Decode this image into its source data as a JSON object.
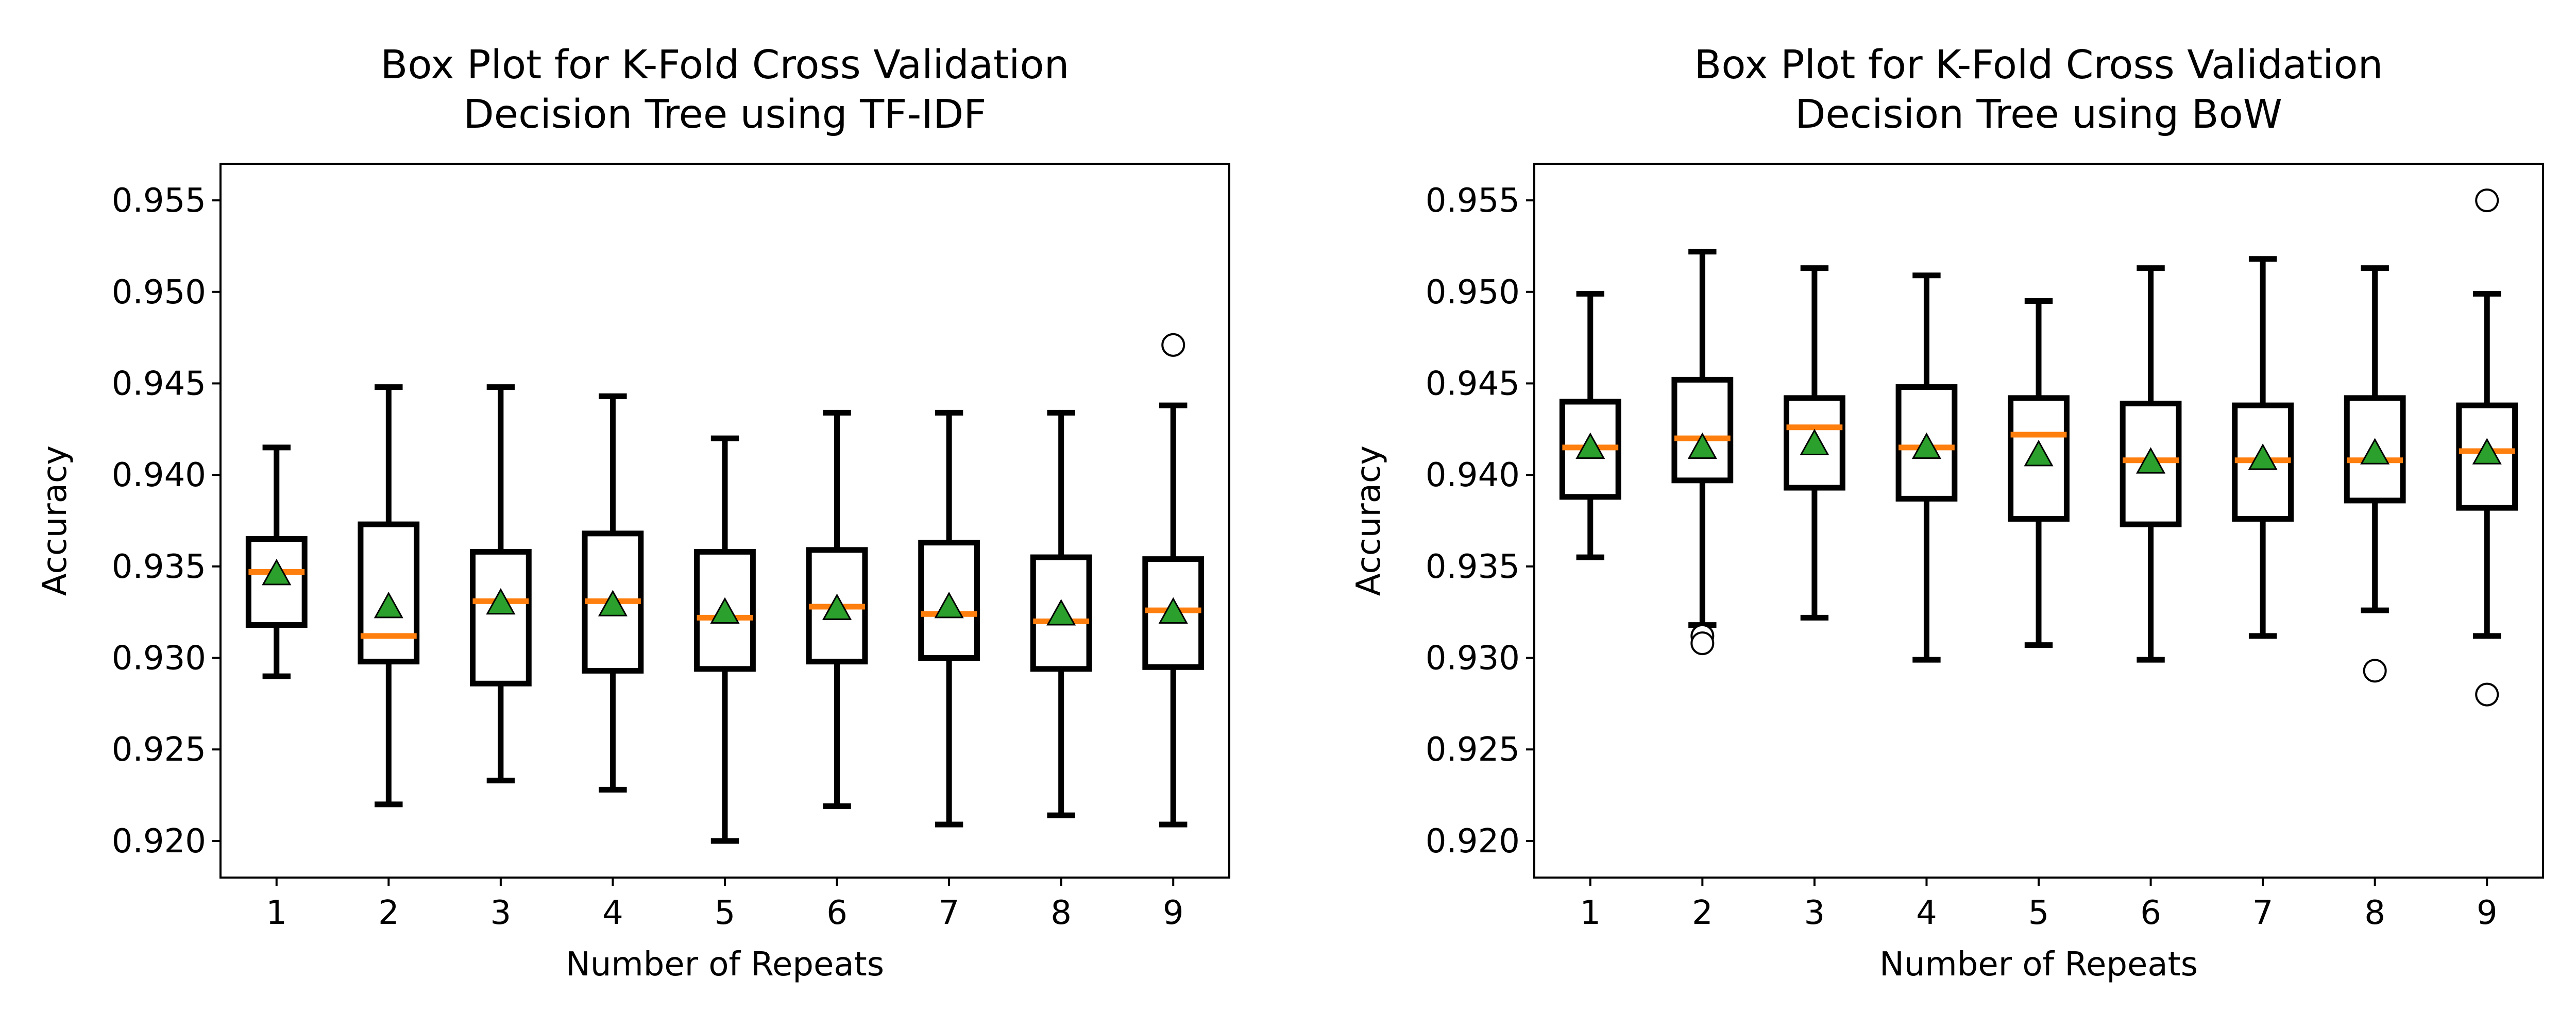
{
  "chart_data": [
    {
      "type": "box",
      "title": "Box Plot for K-Fold Cross Validation\nDecision Tree using TF-IDF",
      "title_lines": [
        "Box Plot for K-Fold Cross Validation",
        "Decision Tree using TF-IDF"
      ],
      "xlabel": "Number of Repeats",
      "ylabel": "Accuracy",
      "categories": [
        "1",
        "2",
        "3",
        "4",
        "5",
        "6",
        "7",
        "8",
        "9"
      ],
      "ylim": [
        0.918,
        0.957
      ],
      "yticks": [
        "0.920",
        "0.925",
        "0.930",
        "0.935",
        "0.940",
        "0.945",
        "0.950",
        "0.955"
      ],
      "grid": false,
      "boxes": [
        {
          "whislo": 0.929,
          "q1": 0.9318,
          "med": 0.9347,
          "q3": 0.9365,
          "whishi": 0.9415,
          "mean": 0.9346,
          "fliers": []
        },
        {
          "whislo": 0.922,
          "q1": 0.9298,
          "med": 0.9312,
          "q3": 0.9373,
          "whishi": 0.9448,
          "mean": 0.9328,
          "fliers": []
        },
        {
          "whislo": 0.9233,
          "q1": 0.9286,
          "med": 0.9331,
          "q3": 0.9358,
          "whishi": 0.9448,
          "mean": 0.933,
          "fliers": []
        },
        {
          "whislo": 0.9228,
          "q1": 0.9293,
          "med": 0.9331,
          "q3": 0.9368,
          "whishi": 0.9443,
          "mean": 0.9329,
          "fliers": []
        },
        {
          "whislo": 0.92,
          "q1": 0.9294,
          "med": 0.9322,
          "q3": 0.9358,
          "whishi": 0.942,
          "mean": 0.9325,
          "fliers": []
        },
        {
          "whislo": 0.9219,
          "q1": 0.9298,
          "med": 0.9328,
          "q3": 0.9359,
          "whishi": 0.9434,
          "mean": 0.9327,
          "fliers": []
        },
        {
          "whislo": 0.9209,
          "q1": 0.93,
          "med": 0.9324,
          "q3": 0.9363,
          "whishi": 0.9434,
          "mean": 0.9328,
          "fliers": []
        },
        {
          "whislo": 0.9214,
          "q1": 0.9294,
          "med": 0.932,
          "q3": 0.9355,
          "whishi": 0.9434,
          "mean": 0.9324,
          "fliers": []
        },
        {
          "whislo": 0.9209,
          "q1": 0.9295,
          "med": 0.9326,
          "q3": 0.9354,
          "whishi": 0.9438,
          "mean": 0.9325,
          "fliers": [
            0.9471
          ]
        }
      ]
    },
    {
      "type": "box",
      "title": "Box Plot for K-Fold Cross Validation\nDecision Tree using BoW",
      "title_lines": [
        "Box Plot for K-Fold Cross Validation",
        "Decision Tree using BoW"
      ],
      "xlabel": "Number of Repeats",
      "ylabel": "Accuracy",
      "categories": [
        "1",
        "2",
        "3",
        "4",
        "5",
        "6",
        "7",
        "8",
        "9"
      ],
      "ylim": [
        0.918,
        0.957
      ],
      "yticks": [
        "0.920",
        "0.925",
        "0.930",
        "0.935",
        "0.940",
        "0.945",
        "0.950",
        "0.955"
      ],
      "grid": false,
      "boxes": [
        {
          "whislo": 0.9355,
          "q1": 0.9388,
          "med": 0.9415,
          "q3": 0.944,
          "whishi": 0.9499,
          "mean": 0.9415,
          "fliers": []
        },
        {
          "whislo": 0.9318,
          "q1": 0.9397,
          "med": 0.942,
          "q3": 0.9452,
          "whishi": 0.9522,
          "mean": 0.9415,
          "fliers": [
            0.9312,
            0.9308
          ]
        },
        {
          "whislo": 0.9322,
          "q1": 0.9393,
          "med": 0.9426,
          "q3": 0.9442,
          "whishi": 0.9513,
          "mean": 0.9417,
          "fliers": []
        },
        {
          "whislo": 0.9299,
          "q1": 0.9387,
          "med": 0.9415,
          "q3": 0.9448,
          "whishi": 0.9509,
          "mean": 0.9415,
          "fliers": []
        },
        {
          "whislo": 0.9307,
          "q1": 0.9376,
          "med": 0.9422,
          "q3": 0.9442,
          "whishi": 0.9495,
          "mean": 0.9411,
          "fliers": []
        },
        {
          "whislo": 0.9299,
          "q1": 0.9373,
          "med": 0.9408,
          "q3": 0.9439,
          "whishi": 0.9513,
          "mean": 0.9407,
          "fliers": []
        },
        {
          "whislo": 0.9312,
          "q1": 0.9376,
          "med": 0.9408,
          "q3": 0.9438,
          "whishi": 0.9518,
          "mean": 0.9409,
          "fliers": []
        },
        {
          "whislo": 0.9326,
          "q1": 0.9386,
          "med": 0.9408,
          "q3": 0.9442,
          "whishi": 0.9513,
          "mean": 0.9412,
          "fliers": [
            0.9293
          ]
        },
        {
          "whislo": 0.9312,
          "q1": 0.9382,
          "med": 0.9413,
          "q3": 0.9438,
          "whishi": 0.9499,
          "mean": 0.9412,
          "fliers": [
            0.955,
            0.928
          ]
        }
      ]
    }
  ],
  "colors": {
    "box": "#000000",
    "median": "#ff7f0e",
    "mean_marker": "#2ca02c",
    "flier_face": "#ffffff"
  }
}
